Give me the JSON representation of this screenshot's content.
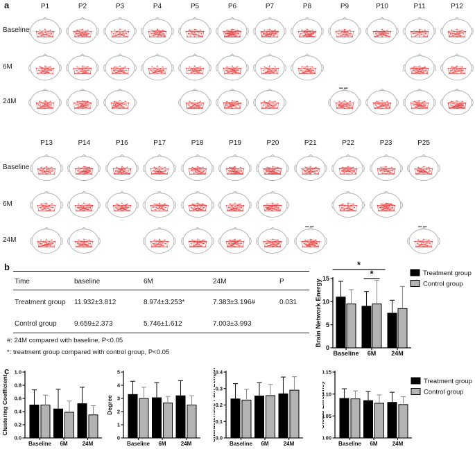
{
  "figure": {
    "panel_a": {
      "label": "a",
      "grids": [
        {
          "patients": [
            "P1",
            "P2",
            "P3",
            "P4",
            "P5",
            "P6",
            "P7",
            "P8",
            "P9",
            "P10",
            "P11",
            "P12"
          ],
          "rows": [
            {
              "label": "Baseline",
              "present": [
                1,
                1,
                1,
                1,
                1,
                1,
                1,
                1,
                1,
                1,
                1,
                1
              ],
              "micro": []
            },
            {
              "label": "6M",
              "present": [
                1,
                1,
                1,
                1,
                1,
                1,
                1,
                1,
                0,
                0,
                1,
                1
              ],
              "micro": []
            },
            {
              "label": "24M",
              "present": [
                1,
                1,
                1,
                0,
                1,
                1,
                1,
                0,
                1,
                1,
                1,
                1
              ],
              "micro": [
                8
              ]
            }
          ]
        },
        {
          "patients": [
            "P13",
            "P14",
            "P16",
            "P17",
            "P18",
            "P19",
            "P20",
            "P21",
            "P22",
            "P23",
            "P25"
          ],
          "rows": [
            {
              "label": "Baseline",
              "present": [
                1,
                1,
                1,
                1,
                1,
                1,
                1,
                1,
                1,
                1,
                1
              ],
              "micro": []
            },
            {
              "label": "6M",
              "present": [
                1,
                1,
                1,
                1,
                1,
                1,
                1,
                0,
                1,
                1,
                0
              ],
              "micro": []
            },
            {
              "label": "24M",
              "present": [
                1,
                1,
                0,
                1,
                1,
                1,
                1,
                1,
                0,
                0,
                1
              ],
              "micro": [
                7,
                10
              ]
            }
          ]
        }
      ]
    },
    "panel_b": {
      "label": "b",
      "table": {
        "headers": [
          "Time",
          "baseline",
          "6M",
          "24M",
          "P"
        ],
        "rows": [
          {
            "cells": [
              "Treatment group",
              "11.932±3.812",
              "8.974±3.253*",
              "7.383±3.196#",
              "0.031"
            ]
          },
          {
            "cells": [
              "Control group",
              "9.659±2.373",
              "5.746±1.612",
              "7.003±3.993",
              ""
            ]
          }
        ],
        "footnotes": [
          "#: 24M compared with baseline, P<0.05",
          "*: treatment group compared with control group, P<0.05"
        ]
      }
    },
    "panel_c": {
      "label": "c"
    },
    "legend": {
      "treatment": "Treatment group",
      "control": "Control group"
    },
    "colors": {
      "treatment": "#000000",
      "control": "#b3b3b3",
      "treatment_err": "#1a1a1a",
      "control_err": "#8f8f8f",
      "network_red": "#e43f3f",
      "head_outline": "#b5b5b5"
    }
  },
  "chart_data": [
    {
      "id": "brain_network_energy",
      "type": "bar",
      "title": "",
      "ylabel": "Brain Network Energy",
      "categories": [
        "Baseline",
        "6M",
        "24M"
      ],
      "series": [
        {
          "name": "Treatment group",
          "values": [
            11.0,
            9.0,
            7.5
          ],
          "errors": [
            3.4,
            3.2,
            2.8
          ]
        },
        {
          "name": "Control group",
          "values": [
            9.5,
            9.5,
            8.5
          ],
          "errors": [
            3.1,
            5.1,
            4.8
          ]
        }
      ],
      "ylim": [
        0,
        15
      ],
      "yticks": [
        0,
        5,
        10,
        15
      ],
      "ytick_labels": [
        "0",
        "5",
        "10",
        "15"
      ],
      "legend_position": "right",
      "significance": [
        {
          "label": "*",
          "from_cat": 0,
          "from_series": 0,
          "to_cat": 1,
          "to_series": 1,
          "level": 2
        },
        {
          "label": "*",
          "from_cat": 1,
          "from_series": 0,
          "to_cat": 1,
          "to_series": 1,
          "level": 1
        }
      ]
    },
    {
      "id": "clustering_coefficient",
      "type": "bar",
      "ylabel": "Clustering Coefficient",
      "categories": [
        "Baseline",
        "6M",
        "24M"
      ],
      "series": [
        {
          "name": "Treatment group",
          "values": [
            0.5,
            0.44,
            0.52
          ],
          "errors": [
            0.23,
            0.3,
            0.25
          ]
        },
        {
          "name": "Control group",
          "values": [
            0.5,
            0.39,
            0.35
          ],
          "errors": [
            0.15,
            0.17,
            0.14
          ]
        }
      ],
      "ylim": [
        0,
        1.0
      ],
      "yticks": [
        0,
        0.2,
        0.4,
        0.6,
        0.8,
        1.0
      ],
      "ytick_labels": [
        "0.0",
        "0.2",
        "0.4",
        "0.6",
        "0.8",
        "1.0"
      ]
    },
    {
      "id": "degree",
      "type": "bar",
      "ylabel": "Degree",
      "categories": [
        "Baseline",
        "6M",
        "24M"
      ],
      "series": [
        {
          "name": "Treatment group",
          "values": [
            3.3,
            3.05,
            3.2
          ],
          "errors": [
            1.0,
            1.15,
            1.15
          ]
        },
        {
          "name": "Control group",
          "values": [
            3.0,
            2.65,
            2.5
          ],
          "errors": [
            0.85,
            0.5,
            0.7
          ]
        }
      ],
      "ylim": [
        0,
        5
      ],
      "yticks": [
        0,
        1,
        2,
        3,
        4,
        5
      ],
      "ytick_labels": [
        "0",
        "1",
        "2",
        "3",
        "4",
        "5"
      ]
    },
    {
      "id": "characteristic_path_length",
      "type": "bar",
      "ylabel": "Characteristic Path Length",
      "categories": [
        "Baseline",
        "6M",
        "24M"
      ],
      "series": [
        {
          "name": "Treatment group",
          "values": [
            0.237,
            0.255,
            0.268
          ],
          "errors": [
            0.093,
            0.08,
            0.102
          ]
        },
        {
          "name": "Control group",
          "values": [
            0.23,
            0.257,
            0.29
          ],
          "errors": [
            0.065,
            0.068,
            0.082
          ]
        }
      ],
      "ylim": [
        0,
        0.4
      ],
      "yticks": [
        0,
        0.1,
        0.2,
        0.3,
        0.4
      ],
      "ytick_labels": [
        "0.0",
        "0.1",
        "0.2",
        "0.3",
        "0.4"
      ]
    },
    {
      "id": "global_efficiency",
      "type": "bar",
      "ylabel": "Global Efficiency",
      "categories": [
        "Baseline",
        "6M",
        "24M"
      ],
      "series": [
        {
          "name": "Treatment group",
          "values": [
            0.09,
            0.085,
            0.081
          ],
          "errors": [
            0.022,
            0.021,
            0.023
          ]
        },
        {
          "name": "Control group",
          "values": [
            0.089,
            0.079,
            0.076
          ],
          "errors": [
            0.018,
            0.019,
            0.018
          ]
        }
      ],
      "ylim": [
        0,
        0.15
      ],
      "yticks": [
        0,
        0.05,
        0.1,
        0.15
      ],
      "ytick_labels": [
        "0.00",
        "0.05",
        "0.10",
        "0.15"
      ],
      "legend_position": "right"
    }
  ]
}
